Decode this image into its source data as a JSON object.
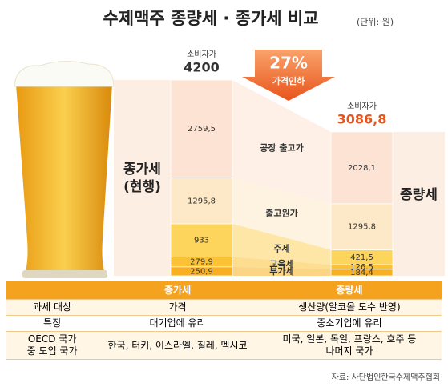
{
  "chart_data": {
    "type": "stacked-bar",
    "title": "수제맥주 종량세 · 종가세 비교",
    "unit": "(단위: 원)",
    "annotation": {
      "percent": "27%",
      "text": "가격인하"
    },
    "categories": [
      "종가세 (현행)",
      "종량세"
    ],
    "consumer_price": {
      "label": "소비자가",
      "values": [
        4200,
        3086.8
      ],
      "value_labels": [
        "4200",
        "3086,8"
      ],
      "colors": [
        "#333333",
        "#e8541c"
      ]
    },
    "series": [
      {
        "name": "공장 출고가",
        "color": "#fde3d3",
        "values": [
          2759.5,
          2028.1
        ],
        "value_labels": [
          "2759,5",
          "2028,1"
        ]
      },
      {
        "name": "출고원가",
        "color": "#fde9c7",
        "values": [
          1295.8,
          1295.8
        ],
        "value_labels": [
          "1295,8",
          "1295,8"
        ]
      },
      {
        "name": "주세",
        "color": "#fdd45c",
        "values": [
          933,
          421.5
        ],
        "value_labels": [
          "933",
          "421,5"
        ]
      },
      {
        "name": "교육세",
        "color": "#fbc235",
        "values": [
          279.9,
          126.5
        ],
        "value_labels": [
          "279,9",
          "126,5"
        ]
      },
      {
        "name": "부가세",
        "color": "#f8b020",
        "values": [
          250.9,
          184.4
        ],
        "value_labels": [
          "250,9",
          "184,4"
        ]
      }
    ]
  },
  "table": {
    "header": [
      "",
      "종가세",
      "종량세"
    ],
    "rows": [
      [
        "과세 대상",
        "가격",
        "생산량(알코올 도수 반영)"
      ],
      [
        "특징",
        "대기업에 유리",
        "중소기업에 유리"
      ],
      [
        "OECD 국가\n중 도입 국가",
        "한국, 터키, 이스라엘, 칠레, 멕시코",
        "미국, 일본, 독일, 프랑스, 호주 등\n나머지 국가"
      ]
    ]
  },
  "source": "자료: 사단법인한국수제맥주협회"
}
